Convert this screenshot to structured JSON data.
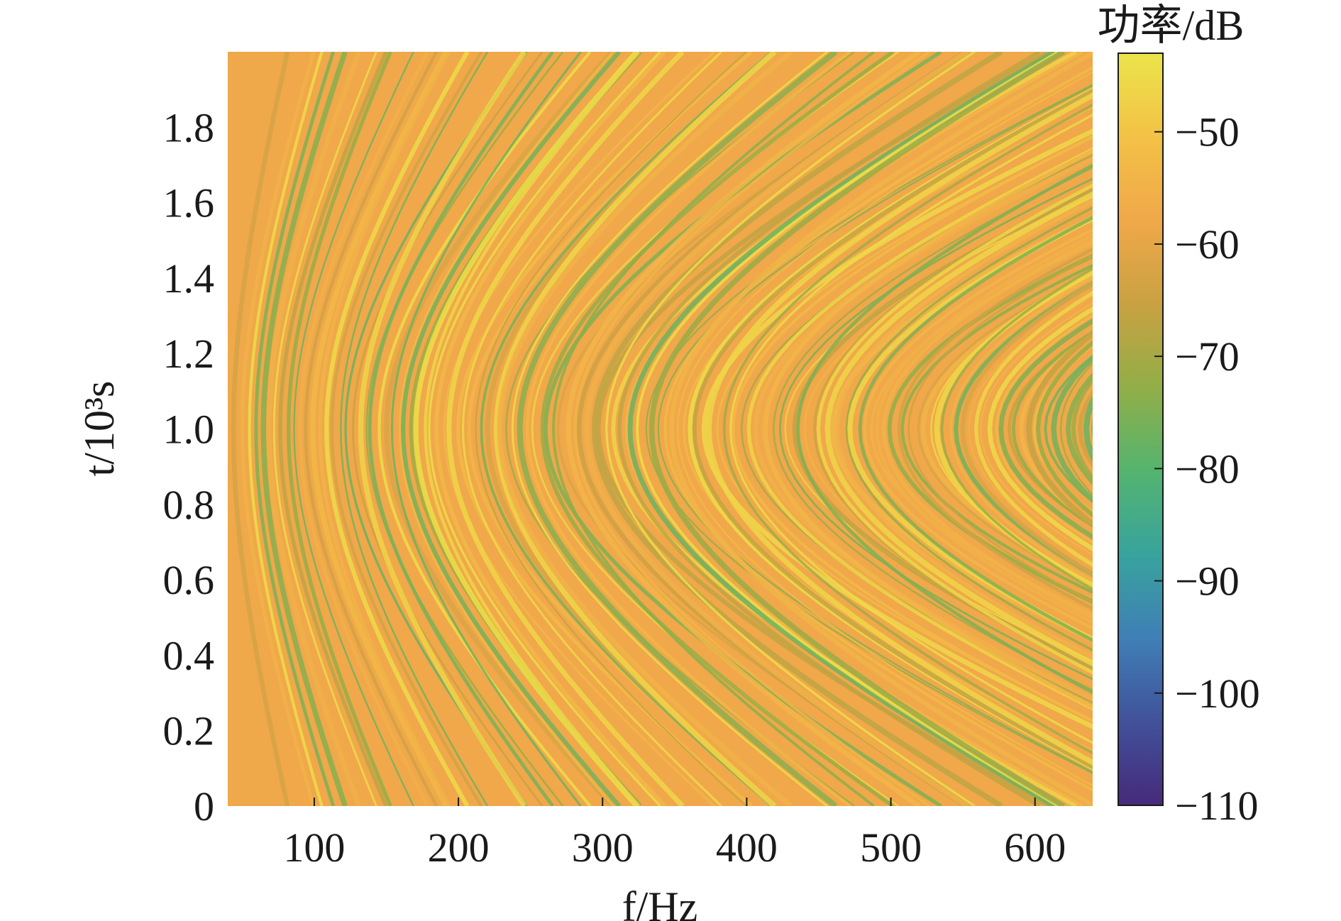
{
  "chart_data": {
    "type": "heatmap",
    "title": "",
    "xlabel": "f/Hz",
    "ylabel": "t/10³s",
    "xlim": [
      40,
      640
    ],
    "ylim": [
      0,
      2.0
    ],
    "x_ticks": [
      100,
      200,
      300,
      400,
      500,
      600
    ],
    "y_ticks": [
      0,
      0.2,
      0.4,
      0.6,
      0.8,
      1.0,
      1.2,
      1.4,
      1.6,
      1.8
    ],
    "x_tick_labels": [
      "100",
      "200",
      "300",
      "400",
      "500",
      "600"
    ],
    "y_tick_labels": [
      "0",
      "0.2",
      "0.4",
      "0.6",
      "0.8",
      "1.0",
      "1.2",
      "1.4",
      "1.6",
      "1.8"
    ],
    "colorbar": {
      "label": "功率/dB",
      "range": [
        -110,
        -43
      ],
      "ticks": [
        -50,
        -60,
        -70,
        -80,
        -90,
        -100,
        -110
      ],
      "tick_labels": [
        "−50",
        "−60",
        "−70",
        "−80",
        "−90",
        "−100",
        "−110"
      ],
      "colormap": [
        "#462a7a",
        "#41519a",
        "#3f7fb6",
        "#38a39d",
        "#54b46f",
        "#92ae48",
        "#c9a142",
        "#f0a84a",
        "#f3c146",
        "#ebe44a"
      ]
    },
    "pattern": {
      "description_of_values": "hyperbolic striations symmetric about t = 1.0 (×10³ s); stripe apex frequency spacing ≈ 36 Hz",
      "symmetry_time": 1.0,
      "apex_spacing_hz": 36,
      "typical_level_db": -55,
      "minimum_level_db": -78
    }
  }
}
